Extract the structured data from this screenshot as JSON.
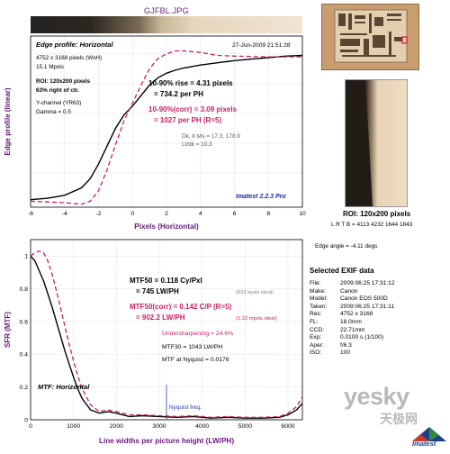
{
  "file_title": "GJFBL.JPG",
  "chart_data": [
    {
      "type": "line",
      "title": "Edge profile: Horizontal",
      "timestamp": "27-Jun-2009 21:51:28",
      "xlabel": "Pixels (Horizontal)",
      "ylabel": "Edge profile (linear)",
      "xlim": [
        -6,
        10
      ],
      "x_ticks": [
        -6,
        -4,
        -2,
        0,
        2,
        4,
        6,
        8,
        10
      ],
      "grid": true,
      "info_lines": [
        "4752 x 3168 pixels (WxH)",
        "15.1 Mpxls",
        "ROI: 120x200 pixels",
        "63% right of ctr.",
        "Y-channel (YR63)",
        "Gamma = 0.5"
      ],
      "annotations": [
        "10-90% rise = 4.31 pixels",
        "= 734.2 per PH",
        "10-90%(corr) = 3.09 pixels",
        "= 1027 per PH  (R=5)",
        "Dk, lt lvls = 17.3, 178.9",
        "Lt/dk = 10.3"
      ],
      "version": "Imatest 2.2.3 Pro",
      "series": [
        {
          "style": "solid",
          "color": "#000000",
          "x": [
            -6,
            -5,
            -4,
            -3,
            -2.5,
            -2,
            -1.5,
            -1,
            -0.5,
            0,
            0.5,
            1,
            1.5,
            2,
            2.5,
            3,
            4,
            5,
            6,
            7,
            8,
            9,
            10
          ],
          "y": [
            0.02,
            0.03,
            0.05,
            0.1,
            0.16,
            0.26,
            0.38,
            0.5,
            0.59,
            0.65,
            0.72,
            0.79,
            0.84,
            0.87,
            0.89,
            0.905,
            0.925,
            0.94,
            0.955,
            0.965,
            0.975,
            0.985,
            0.99
          ]
        },
        {
          "style": "dashed",
          "color": "#cc1f5f",
          "x": [
            -6,
            -4,
            -3,
            -2.5,
            -2,
            -1.5,
            -1,
            -0.5,
            0,
            0.5,
            1,
            1.5,
            2,
            2.5,
            3,
            4,
            5,
            6,
            8,
            10
          ],
          "y": [
            0.01,
            0.0,
            -0.01,
            0.01,
            0.08,
            0.22,
            0.39,
            0.55,
            0.67,
            0.79,
            0.9,
            0.97,
            1.0,
            1.02,
            1.02,
            1.01,
            0.99,
            0.985,
            0.98,
            0.98
          ]
        }
      ]
    },
    {
      "type": "line",
      "title": "MTF: Horizontal",
      "xlabel": "Line widths per picture height (LW/PH)",
      "ylabel": "SFR (MTF)",
      "xlim": [
        0,
        6336
      ],
      "ylim": [
        0,
        1.1
      ],
      "x_ticks": [
        0,
        1000,
        2000,
        3000,
        4000,
        5000,
        6000
      ],
      "y_ticks": [
        0,
        0.2,
        0.4,
        0.6,
        0.8,
        1
      ],
      "grid": true,
      "nyquist_lwph": 3168,
      "nyquist_label": "Nyquist freq.",
      "annotations": {
        "mtf50": "MTF50 = 0.118 Cy/Pxl",
        "mtf50_lwph": "= 745 LW/PH",
        "mtf50_ideal": "(833 kpxls ideal)",
        "mtf50_corr": "MTF50(corr) = 0.142 C/P   (R=5)",
        "mtf50_corr_lwph": "= 902.2 LW/PH",
        "mtf50_corr_ideal": "(1.22 mpxls ideal)",
        "undersharpening": "Undersharpening = 24.6%",
        "mtf30": "MTF30 = 1043 LW/PH",
        "mtf_nyquist": "MTF at Nyquist = 0.0176"
      },
      "series": [
        {
          "style": "solid",
          "color": "#000000",
          "x": [
            0,
            100,
            200,
            300,
            400,
            500,
            600,
            700,
            800,
            900,
            1000,
            1100,
            1200,
            1400,
            1600,
            1800,
            2000,
            2300,
            2600,
            3000,
            3400,
            3800,
            4200,
            4600,
            5000,
            5400,
            5800,
            6000,
            6200,
            6336
          ],
          "y": [
            1.0,
            0.97,
            0.91,
            0.85,
            0.77,
            0.69,
            0.6,
            0.51,
            0.42,
            0.34,
            0.26,
            0.19,
            0.13,
            0.06,
            0.04,
            0.05,
            0.04,
            0.02,
            0.025,
            0.02,
            0.015,
            0.02,
            0.01,
            0.015,
            0.01,
            0.01,
            0.015,
            0.03,
            0.06,
            0.1
          ]
        },
        {
          "style": "dashed",
          "color": "#cc1f5f",
          "x": [
            0,
            100,
            200,
            300,
            400,
            500,
            600,
            700,
            800,
            900,
            1000,
            1100,
            1200,
            1400,
            1600,
            1800,
            2000,
            2300,
            2600,
            3000,
            3400,
            3800,
            4200,
            4600,
            5000,
            5400,
            5800,
            6000,
            6200,
            6336
          ],
          "y": [
            1.0,
            1.02,
            1.03,
            1.02,
            0.97,
            0.89,
            0.79,
            0.68,
            0.57,
            0.46,
            0.36,
            0.27,
            0.19,
            0.09,
            0.05,
            0.06,
            0.05,
            0.03,
            0.03,
            0.025,
            0.02,
            0.025,
            0.015,
            0.02,
            0.015,
            0.015,
            0.02,
            0.04,
            0.08,
            0.14
          ]
        }
      ]
    }
  ],
  "roi": {
    "label": "ROI: 120x200 pixels",
    "coords": "L R T B = 4113 4232 1644 1843",
    "edge_angle": "Edge angle = -4.11 degs"
  },
  "exif": {
    "title": "Selected EXIF data",
    "rows": [
      {
        "key": "File:",
        "value": "2009:06:25 17:31:12"
      },
      {
        "key": "Make:",
        "value": "Canon"
      },
      {
        "key": "Model:",
        "value": "Canon EOS 500D"
      },
      {
        "key": "Taken:",
        "value": "2009:06:25 17:31:11"
      },
      {
        "key": "Res:",
        "value": "4752 x 3168"
      },
      {
        "key": "FL:",
        "value": "18.0mm"
      },
      {
        "key": "CCD:",
        "value": "22.71mm"
      },
      {
        "key": "Exp:",
        "value": "0.0100 s  (1/100)"
      },
      {
        "key": "Aper:",
        "value": "f/6.3"
      },
      {
        "key": "ISO:",
        "value": "100"
      }
    ]
  },
  "watermark": {
    "site": "yesky",
    "cn": "天极网",
    "brand": "Imatest"
  },
  "colors": {
    "accent": "#cc1f5f",
    "strip_dark": "#2a231d",
    "strip_light": "#eee0cc"
  }
}
